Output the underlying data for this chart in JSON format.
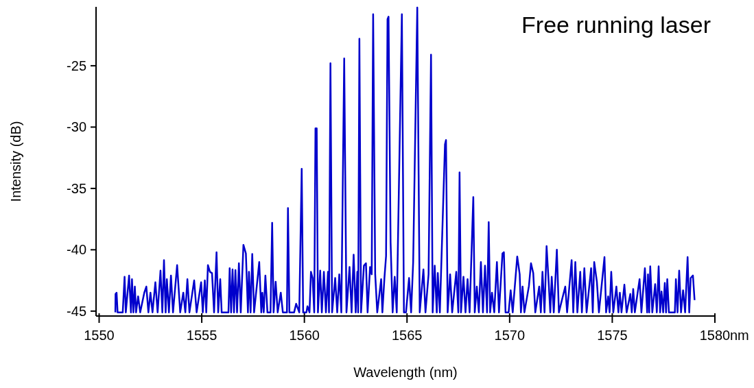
{
  "chart_data": {
    "type": "line",
    "title": "Free running laser",
    "xlabel": "Wavelength (nm)",
    "ylabel": "Intensity (dB)",
    "annotations": [
      "nm"
    ],
    "xlim": [
      1549.85,
      1580
    ],
    "xticks": [
      1550,
      1555,
      1560,
      1565,
      1570,
      1575,
      1580
    ],
    "ylim": [
      -45.4,
      -20.2
    ],
    "yticks": [
      -45,
      -40,
      -35,
      -30,
      -25
    ],
    "grid": false,
    "marker": "none",
    "line_style": "solid",
    "series": [
      {
        "color": "#0000cc",
        "x": [
          1550.79,
          1550.8,
          1550.85,
          1550.9,
          1551.15,
          1551.24,
          1551.3,
          1551.46,
          1551.55,
          1551.6,
          1551.67,
          1551.74,
          1551.8,
          1551.9,
          1552.0,
          1552.2,
          1552.3,
          1552.4,
          1552.5,
          1552.6,
          1552.74,
          1552.85,
          1552.99,
          1553.08,
          1553.16,
          1553.24,
          1553.3,
          1553.4,
          1553.5,
          1553.6,
          1553.8,
          1553.95,
          1554.1,
          1554.2,
          1554.3,
          1554.4,
          1554.63,
          1554.75,
          1554.97,
          1555.05,
          1555.15,
          1555.22,
          1555.3,
          1555.4,
          1555.5,
          1555.6,
          1555.72,
          1555.8,
          1555.9,
          1555.97,
          1556.3,
          1556.36,
          1556.43,
          1556.5,
          1556.57,
          1556.64,
          1556.72,
          1556.81,
          1556.9,
          1557.03,
          1557.15,
          1557.25,
          1557.3,
          1557.38,
          1557.46,
          1557.55,
          1557.8,
          1557.9,
          1557.95,
          1558.02,
          1558.1,
          1558.2,
          1558.35,
          1558.43,
          1558.5,
          1558.6,
          1558.7,
          1558.85,
          1558.95,
          1559.15,
          1559.2,
          1559.27,
          1559.5,
          1559.6,
          1559.75,
          1559.87,
          1559.94,
          1560.1,
          1560.15,
          1560.25,
          1560.32,
          1560.4,
          1560.48,
          1560.54,
          1560.6,
          1560.66,
          1560.77,
          1560.85,
          1560.95,
          1561.05,
          1561.15,
          1561.2,
          1561.27,
          1561.35,
          1561.5,
          1561.6,
          1561.7,
          1561.8,
          1561.94,
          1562.05,
          1562.2,
          1562.3,
          1562.4,
          1562.5,
          1562.58,
          1562.62,
          1562.68,
          1562.76,
          1562.9,
          1563.0,
          1563.08,
          1563.2,
          1563.28,
          1563.35,
          1563.45,
          1563.55,
          1563.74,
          1563.8,
          1563.9,
          1563.98,
          1564.05,
          1564.1,
          1564.2,
          1564.3,
          1564.4,
          1564.5,
          1564.75,
          1564.85,
          1564.95,
          1565.1,
          1565.2,
          1565.3,
          1565.5,
          1565.62,
          1565.8,
          1565.9,
          1566.05,
          1566.17,
          1566.25,
          1566.35,
          1566.45,
          1566.5,
          1566.6,
          1566.85,
          1566.9,
          1566.98,
          1567.1,
          1567.2,
          1567.4,
          1567.5,
          1567.56,
          1567.63,
          1567.75,
          1567.85,
          1567.95,
          1568.05,
          1568.23,
          1568.3,
          1568.4,
          1568.5,
          1568.6,
          1568.7,
          1568.8,
          1568.9,
          1568.98,
          1569.05,
          1569.14,
          1569.25,
          1569.38,
          1569.48,
          1569.65,
          1569.72,
          1569.8,
          1569.95,
          1570.05,
          1570.15,
          1570.37,
          1570.49,
          1570.55,
          1570.63,
          1570.72,
          1570.94,
          1571.04,
          1571.15,
          1571.25,
          1571.44,
          1571.52,
          1571.6,
          1571.7,
          1571.8,
          1571.9,
          1571.98,
          1572.05,
          1572.15,
          1572.3,
          1572.4,
          1572.71,
          1572.8,
          1573.02,
          1573.1,
          1573.2,
          1573.3,
          1573.44,
          1573.52,
          1573.64,
          1573.75,
          1573.97,
          1574.05,
          1574.12,
          1574.25,
          1574.35,
          1574.62,
          1574.7,
          1574.8,
          1574.87,
          1574.95,
          1575.05,
          1575.2,
          1575.3,
          1575.37,
          1575.45,
          1575.59,
          1575.7,
          1575.88,
          1575.95,
          1576.02,
          1576.1,
          1576.33,
          1576.42,
          1576.59,
          1576.7,
          1576.74,
          1576.8,
          1576.85,
          1576.95,
          1577.09,
          1577.17,
          1577.26,
          1577.33,
          1577.4,
          1577.48,
          1577.56,
          1577.62,
          1577.68,
          1577.76,
          1578.05,
          1578.1,
          1578.18,
          1578.26,
          1578.35,
          1578.45,
          1578.55,
          1578.67,
          1578.75,
          1578.82,
          1578.93,
          1579.01
        ],
        "values": [
          -45.1,
          -43.6,
          -43.5,
          -45.1,
          -45.1,
          -42.2,
          -45.1,
          -42.1,
          -45.1,
          -42.4,
          -45.1,
          -43.0,
          -45.1,
          -43.8,
          -45.1,
          -43.5,
          -43.0,
          -45.1,
          -43.5,
          -45.1,
          -42.65,
          -45.1,
          -41.7,
          -45.1,
          -40.85,
          -45.1,
          -42.4,
          -45.1,
          -42.1,
          -45.1,
          -41.25,
          -45.1,
          -43.5,
          -45.1,
          -42.4,
          -45.1,
          -42.5,
          -45.1,
          -42.65,
          -45.1,
          -42.5,
          -45.1,
          -41.25,
          -41.8,
          -41.9,
          -45.1,
          -40.2,
          -45.1,
          -42.4,
          -45.1,
          -45.1,
          -41.5,
          -45.1,
          -41.6,
          -45.1,
          -41.65,
          -45.1,
          -41.1,
          -45.1,
          -39.6,
          -40.3,
          -45.1,
          -41.8,
          -45.1,
          -40.35,
          -45.1,
          -41.0,
          -45.1,
          -43.5,
          -45.1,
          -42.1,
          -45.1,
          -45.1,
          -37.8,
          -45.1,
          -42.6,
          -45.1,
          -43.5,
          -45.1,
          -45.1,
          -36.6,
          -45.1,
          -45.1,
          -44.4,
          -45.1,
          -33.4,
          -45.1,
          -45.1,
          -44.6,
          -45.1,
          -41.8,
          -42.3,
          -45.1,
          -30.1,
          -30.1,
          -45.1,
          -41.7,
          -45.1,
          -41.8,
          -45.1,
          -41.8,
          -45.1,
          -24.8,
          -45.1,
          -42.3,
          -45.1,
          -42.0,
          -45.1,
          -24.4,
          -45.1,
          -41.4,
          -45.1,
          -40.4,
          -45.1,
          -41.8,
          -45.1,
          -22.8,
          -45.1,
          -41.3,
          -41.1,
          -45.1,
          -41.4,
          -42.0,
          -20.8,
          -42.0,
          -45.1,
          -42.4,
          -45.1,
          -42.3,
          -40.5,
          -21.2,
          -21.0,
          -39.4,
          -45.1,
          -42.2,
          -45.1,
          -20.8,
          -45.1,
          -45.1,
          -42.3,
          -45.1,
          -41.0,
          -20.25,
          -45.1,
          -41.6,
          -45.1,
          -42.0,
          -24.1,
          -45.1,
          -41.3,
          -45.1,
          -41.9,
          -45.1,
          -31.4,
          -31.05,
          -45.1,
          -42.0,
          -45.1,
          -41.8,
          -45.1,
          -33.7,
          -45.1,
          -42.2,
          -45.1,
          -42.4,
          -45.1,
          -35.7,
          -45.1,
          -43.0,
          -45.1,
          -41.0,
          -45.1,
          -41.3,
          -45.1,
          -37.75,
          -45.1,
          -43.5,
          -45.1,
          -41.0,
          -45.1,
          -40.3,
          -40.2,
          -45.1,
          -45.1,
          -43.3,
          -45.1,
          -40.55,
          -42.0,
          -45.1,
          -43.0,
          -45.1,
          -42.95,
          -41.1,
          -41.9,
          -45.1,
          -43.0,
          -45.1,
          -41.8,
          -45.1,
          -39.7,
          -42.6,
          -45.1,
          -42.2,
          -45.1,
          -40.0,
          -45.1,
          -43.0,
          -45.1,
          -40.85,
          -45.1,
          -41.0,
          -45.1,
          -41.8,
          -45.1,
          -41.5,
          -45.1,
          -41.5,
          -45.1,
          -41.0,
          -42.6,
          -45.1,
          -40.6,
          -45.1,
          -43.8,
          -45.1,
          -41.8,
          -45.1,
          -43.0,
          -45.1,
          -43.5,
          -45.1,
          -42.85,
          -45.1,
          -43.6,
          -45.1,
          -43.2,
          -45.1,
          -42.4,
          -45.1,
          -41.5,
          -45.1,
          -42.0,
          -45.1,
          -41.35,
          -45.1,
          -42.8,
          -45.1,
          -41.35,
          -45.1,
          -43.4,
          -45.1,
          -42.7,
          -45.1,
          -42.4,
          -45.1,
          -45.1,
          -42.4,
          -45.1,
          -41.7,
          -45.1,
          -43.3,
          -45.1,
          -40.6,
          -45.1,
          -42.3,
          -42.1,
          -44.1
        ]
      }
    ]
  }
}
